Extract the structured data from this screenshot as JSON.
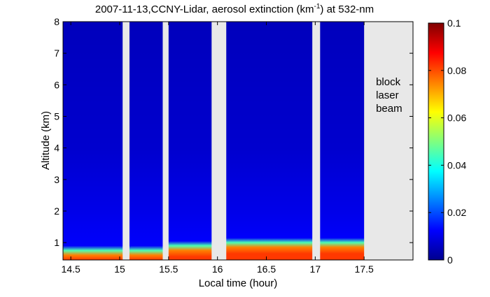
{
  "chart_data": {
    "type": "heatmap",
    "title": {
      "prefix": "2007-11-13,CCNY-Lidar, aerosol extinction (km",
      "superscript": "-1",
      "suffix": ") at 532-nm"
    },
    "xlabel": "Local time (hour)",
    "ylabel": "Altitude (km)",
    "xlim": [
      14.42,
      18.0
    ],
    "ylim": [
      0.45,
      8.0
    ],
    "x_ticks": [
      14.5,
      15,
      15.5,
      16,
      16.5,
      17,
      17.5
    ],
    "x_tick_labels": [
      "14.5",
      "15",
      "15.5",
      "16",
      "16.5",
      "17",
      "17.5"
    ],
    "y_ticks": [
      1,
      2,
      3,
      4,
      5,
      6,
      7,
      8
    ],
    "y_tick_labels": [
      "1",
      "2",
      "3",
      "4",
      "5",
      "6",
      "7",
      "8"
    ],
    "colorbar": {
      "range": [
        0,
        0.1
      ],
      "ticks": [
        0,
        0.02,
        0.04,
        0.06,
        0.08,
        0.1
      ],
      "tick_labels": [
        "0",
        "0.02",
        "0.04",
        "0.06",
        "0.08",
        "0.1"
      ],
      "colormap": "jet"
    },
    "data_segments": [
      {
        "start": 14.42,
        "end": 15.03,
        "boundary_layer_top_km": 0.75
      },
      {
        "start": 15.1,
        "end": 15.44,
        "boundary_layer_top_km": 0.75
      },
      {
        "start": 15.5,
        "end": 15.94,
        "boundary_layer_top_km": 0.9
      },
      {
        "start": 16.09,
        "end": 16.97,
        "boundary_layer_top_km": 1.0
      },
      {
        "start": 17.05,
        "end": 17.5,
        "boundary_layer_top_km": 1.0
      }
    ],
    "no_data_gaps": [
      [
        15.03,
        15.1
      ],
      [
        15.44,
        15.5
      ],
      [
        15.94,
        16.09
      ],
      [
        16.97,
        17.05
      ],
      [
        17.5,
        18.0
      ]
    ],
    "annotation": {
      "lines": [
        "block",
        "laser",
        "beam"
      ],
      "x": 17.75,
      "y": 5.5
    },
    "profile_levels": [
      {
        "altitude_km": 0.5,
        "extinction": 0.082
      },
      {
        "altitude_km": 0.7,
        "extinction": 0.075
      },
      {
        "altitude_km": 0.85,
        "extinction": 0.045
      },
      {
        "altitude_km": 1.0,
        "extinction": 0.012
      },
      {
        "altitude_km": 1.5,
        "extinction": 0.011
      },
      {
        "altitude_km": 2.0,
        "extinction": 0.01
      },
      {
        "altitude_km": 2.7,
        "extinction": 0.009
      },
      {
        "altitude_km": 4.0,
        "extinction": 0.007
      },
      {
        "altitude_km": 6.0,
        "extinction": 0.006
      },
      {
        "altitude_km": 8.0,
        "extinction": 0.005
      }
    ]
  }
}
